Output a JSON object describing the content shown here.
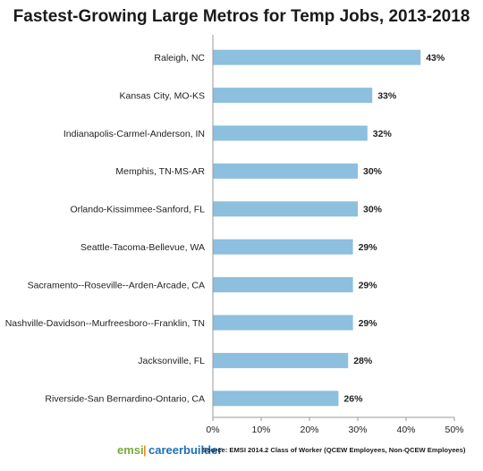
{
  "chart_data": {
    "type": "bar",
    "orientation": "horizontal",
    "title": "Fastest-Growing Large Metros for Temp Jobs, 2013-2018",
    "categories": [
      "Raleigh, NC",
      "Kansas City, MO-KS",
      "Indianapolis-Carmel-Anderson, IN",
      "Memphis, TN-MS-AR",
      "Orlando-Kissimmee-Sanford, FL",
      "Seattle-Tacoma-Bellevue, WA",
      "Sacramento--Roseville--Arden-Arcade, CA",
      "Nashville-Davidson--Murfreesboro--Franklin, TN",
      "Jacksonville, FL",
      "Riverside-San Bernardino-Ontario, CA"
    ],
    "values": [
      43,
      33,
      32,
      30,
      30,
      29,
      29,
      29,
      28,
      26
    ],
    "value_labels": [
      "43%",
      "33%",
      "32%",
      "30%",
      "30%",
      "29%",
      "29%",
      "29%",
      "28%",
      "26%"
    ],
    "xlim": [
      0,
      50
    ],
    "xticks": [
      "0%",
      "10%",
      "20%",
      "30%",
      "40%",
      "50%"
    ],
    "grid": false,
    "bar_color": "#8dbfdf"
  },
  "footer": {
    "logo_emsi": "emsi",
    "logo_separator": "|",
    "logo_careerbuilder": "careerbuilder",
    "source": "Source: EMSI 2014.2 Class of Worker (QCEW Employees, Non-QCEW Employees)"
  },
  "colors": {
    "bar": "#8dbfdf",
    "axis": "#9a9a9a",
    "emsi_green": "#7aab3a",
    "careerbuilder_blue": "#1f6fb5",
    "careerbuilder_orange": "#f08a24"
  }
}
